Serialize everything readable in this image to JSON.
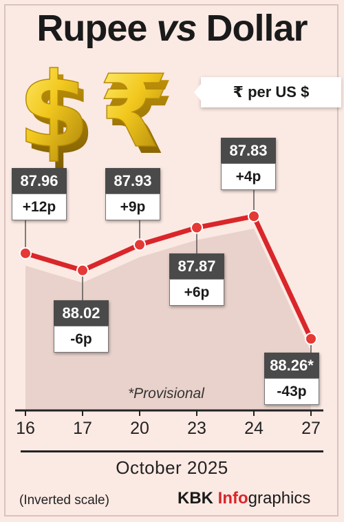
{
  "title": {
    "part1": "Rupee ",
    "part2": "vs",
    "part3": " Dollar"
  },
  "unit_label": "₹ per US $",
  "provisional_note": "*Provisional",
  "month_label": "October 2025",
  "footnote": "(Inverted scale)",
  "credit": {
    "part1": "KBK ",
    "part2": "Info",
    "part3": "graphics"
  },
  "colors": {
    "background": "#fbe9e3",
    "line": "#d9262a",
    "marker": "#e53935",
    "area": "#e7cfc8",
    "label_top": "#4a4a4a",
    "credit_accent": "#d9262a"
  },
  "icons": [
    "dollar-sign-3d-icon",
    "rupee-sign-3d-icon"
  ],
  "chart_data": {
    "type": "line",
    "title": "Rupee vs Dollar",
    "xlabel": "October 2025",
    "ylabel": "₹ per US $",
    "y_scale": "inverted",
    "ylim": [
      88.4,
      87.6
    ],
    "categories": [
      "16",
      "17",
      "20",
      "23",
      "24",
      "27"
    ],
    "values": [
      87.96,
      88.02,
      87.93,
      87.87,
      87.83,
      88.26
    ],
    "value_labels": [
      "87.96",
      "88.02",
      "87.93",
      "87.87",
      "87.83",
      "88.26*"
    ],
    "change_labels": [
      "+12p",
      "-6p",
      "+9p",
      "+6p",
      "+4p",
      "-43p"
    ],
    "grid": false
  }
}
